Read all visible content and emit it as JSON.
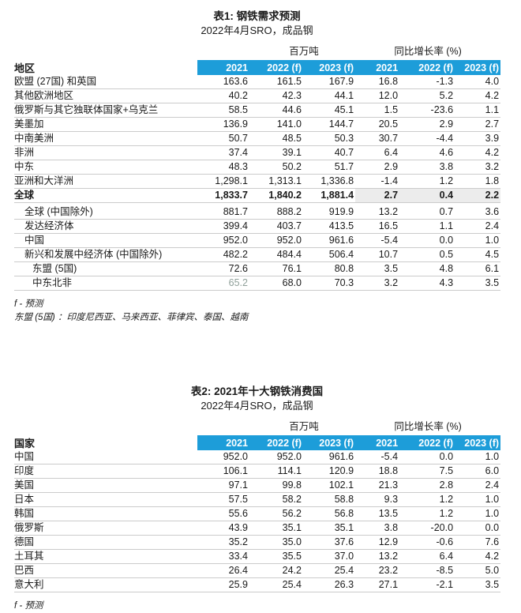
{
  "colors": {
    "accent_blue": "#1d9dd9",
    "header_text": "#ffffff",
    "row_border": "#cbcbcb",
    "total_row_shade": "#ececec",
    "muted_value": "#90a09a"
  },
  "table1": {
    "title": "表1: 钢铁需求预测",
    "subtitle": "2022年4月SRO，成品钢",
    "unit_header": "百万吨",
    "growth_header": "同比增长率 (%)",
    "row_header": "地区",
    "columns": [
      "2021",
      "2022 (f)",
      "2023 (f)",
      "2021",
      "2022 (f)",
      "2023 (f)"
    ],
    "rows": [
      {
        "label": "欧盟 (27国) 和英国",
        "values": [
          "163.6",
          "161.5",
          "167.9",
          "16.8",
          "-1.3",
          "4.0"
        ]
      },
      {
        "label": "其他欧洲地区",
        "values": [
          "40.2",
          "42.3",
          "44.1",
          "12.0",
          "5.2",
          "4.2"
        ]
      },
      {
        "label": "俄罗斯与其它独联体国家+乌克兰",
        "values": [
          "58.5",
          "44.6",
          "45.1",
          "1.5",
          "-23.6",
          "1.1"
        ]
      },
      {
        "label": "美墨加",
        "values": [
          "136.9",
          "141.0",
          "144.7",
          "20.5",
          "2.9",
          "2.7"
        ]
      },
      {
        "label": "中南美洲",
        "values": [
          "50.7",
          "48.5",
          "50.3",
          "30.7",
          "-4.4",
          "3.9"
        ]
      },
      {
        "label": "非洲",
        "values": [
          "37.4",
          "39.1",
          "40.7",
          "6.4",
          "4.6",
          "4.2"
        ]
      },
      {
        "label": "中东",
        "values": [
          "48.3",
          "50.2",
          "51.7",
          "2.9",
          "3.8",
          "3.2"
        ]
      },
      {
        "label": "亚洲和大洋洲",
        "values": [
          "1,298.1",
          "1,313.1",
          "1,336.8",
          "-1.4",
          "1.2",
          "1.8"
        ]
      },
      {
        "label": "全球",
        "bold": true,
        "shaded": true,
        "values": [
          "1,833.7",
          "1,840.2",
          "1,881.4",
          "2.7",
          "0.4",
          "2.2"
        ]
      },
      {
        "label": "全球 (中国除外)",
        "indent": 1,
        "gap_above": true,
        "values": [
          "881.7",
          "888.2",
          "919.9",
          "13.2",
          "0.7",
          "3.6"
        ]
      },
      {
        "label": "发达经济体",
        "indent": 1,
        "values": [
          "399.4",
          "403.7",
          "413.5",
          "16.5",
          "1.1",
          "2.4"
        ]
      },
      {
        "label": "中国",
        "indent": 1,
        "values": [
          "952.0",
          "952.0",
          "961.6",
          "-5.4",
          "0.0",
          "1.0"
        ]
      },
      {
        "label": "新兴和发展中经济体 (中国除外)",
        "indent": 1,
        "values": [
          "482.2",
          "484.4",
          "506.4",
          "10.7",
          "0.5",
          "4.5"
        ]
      },
      {
        "label": "东盟 (5国)",
        "indent": 2,
        "values": [
          "72.6",
          "76.1",
          "80.8",
          "3.5",
          "4.8",
          "6.1"
        ]
      },
      {
        "label": "中东北非",
        "indent": 2,
        "muted_first": true,
        "values": [
          "65.2",
          "68.0",
          "70.3",
          "3.2",
          "4.3",
          "3.5"
        ]
      }
    ],
    "footnotes": [
      "f - 预测",
      "东盟 (5国) ：印度尼西亚、马来西亚、菲律宾、泰国、越南"
    ]
  },
  "table2": {
    "title": "表2: 2021年十大钢铁消费国",
    "subtitle": "2022年4月SRO，成品钢",
    "unit_header": "百万吨",
    "growth_header": "同比增长率 (%)",
    "row_header": "国家",
    "columns": [
      "2021",
      "2022 (f)",
      "2023 (f)",
      "2021",
      "2022 (f)",
      "2023 (f)"
    ],
    "rows": [
      {
        "label": "中国",
        "values": [
          "952.0",
          "952.0",
          "961.6",
          "-5.4",
          "0.0",
          "1.0"
        ]
      },
      {
        "label": "印度",
        "values": [
          "106.1",
          "114.1",
          "120.9",
          "18.8",
          "7.5",
          "6.0"
        ]
      },
      {
        "label": "美国",
        "values": [
          "97.1",
          "99.8",
          "102.1",
          "21.3",
          "2.8",
          "2.4"
        ]
      },
      {
        "label": "日本",
        "values": [
          "57.5",
          "58.2",
          "58.8",
          "9.3",
          "1.2",
          "1.0"
        ]
      },
      {
        "label": "韩国",
        "values": [
          "55.6",
          "56.2",
          "56.8",
          "13.5",
          "1.2",
          "1.0"
        ]
      },
      {
        "label": "俄罗斯",
        "values": [
          "43.9",
          "35.1",
          "35.1",
          "3.8",
          "-20.0",
          "0.0"
        ]
      },
      {
        "label": "德国",
        "values": [
          "35.2",
          "35.0",
          "37.6",
          "12.9",
          "-0.6",
          "7.6"
        ]
      },
      {
        "label": "土耳其",
        "values": [
          "33.4",
          "35.5",
          "37.0",
          "13.2",
          "6.4",
          "4.2"
        ]
      },
      {
        "label": "巴西",
        "values": [
          "26.4",
          "24.2",
          "25.4",
          "23.2",
          "-8.5",
          "5.0"
        ]
      },
      {
        "label": "意大利",
        "values": [
          "25.9",
          "25.4",
          "26.3",
          "27.1",
          "-2.1",
          "3.5"
        ]
      }
    ],
    "footnotes": [
      "f - 预测"
    ]
  }
}
